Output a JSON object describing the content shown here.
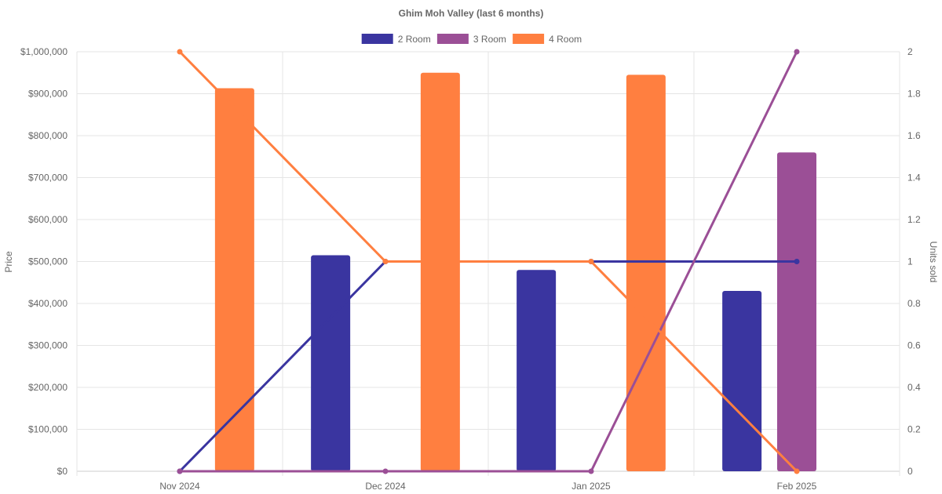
{
  "chart_data": {
    "type": "bar",
    "title": "Ghim Moh Valley (last 6 months)",
    "categories": [
      "Nov 2024",
      "Dec 2024",
      "Jan 2025",
      "Feb 2025"
    ],
    "y_left": {
      "label": "Price",
      "range": [
        0,
        1000000
      ],
      "ticks": [
        0,
        100000,
        200000,
        300000,
        400000,
        500000,
        600000,
        700000,
        800000,
        900000,
        1000000
      ],
      "tick_labels": [
        "$0",
        "$100,000",
        "$200,000",
        "$300,000",
        "$400,000",
        "$500,000",
        "$600,000",
        "$700,000",
        "$800,000",
        "$900,000",
        "$1,000,000"
      ]
    },
    "y_right": {
      "label": "Units sold",
      "range": [
        0,
        2
      ],
      "ticks": [
        0,
        0.2,
        0.4,
        0.6,
        0.8,
        1,
        1.2,
        1.4,
        1.6,
        1.8,
        2
      ],
      "tick_labels": [
        "0",
        "0.2",
        "0.4",
        "0.6",
        "0.8",
        "1",
        "1.2",
        "1.4",
        "1.6",
        "1.8",
        "2"
      ]
    },
    "legend_position": "top",
    "grid": true,
    "series": [
      {
        "name": "2 Room",
        "color": "#3a35a0",
        "price": [
          null,
          515000,
          480000,
          430000
        ],
        "units": [
          0,
          1,
          1,
          1
        ]
      },
      {
        "name": "3 Room",
        "color": "#9b4f96",
        "price": [
          null,
          null,
          null,
          760000
        ],
        "units": [
          0,
          0,
          0,
          2
        ]
      },
      {
        "name": "4 Room",
        "color": "#ff7f40",
        "price": [
          913000,
          950000,
          945000,
          null
        ],
        "units": [
          2,
          1,
          1,
          0
        ]
      }
    ]
  }
}
